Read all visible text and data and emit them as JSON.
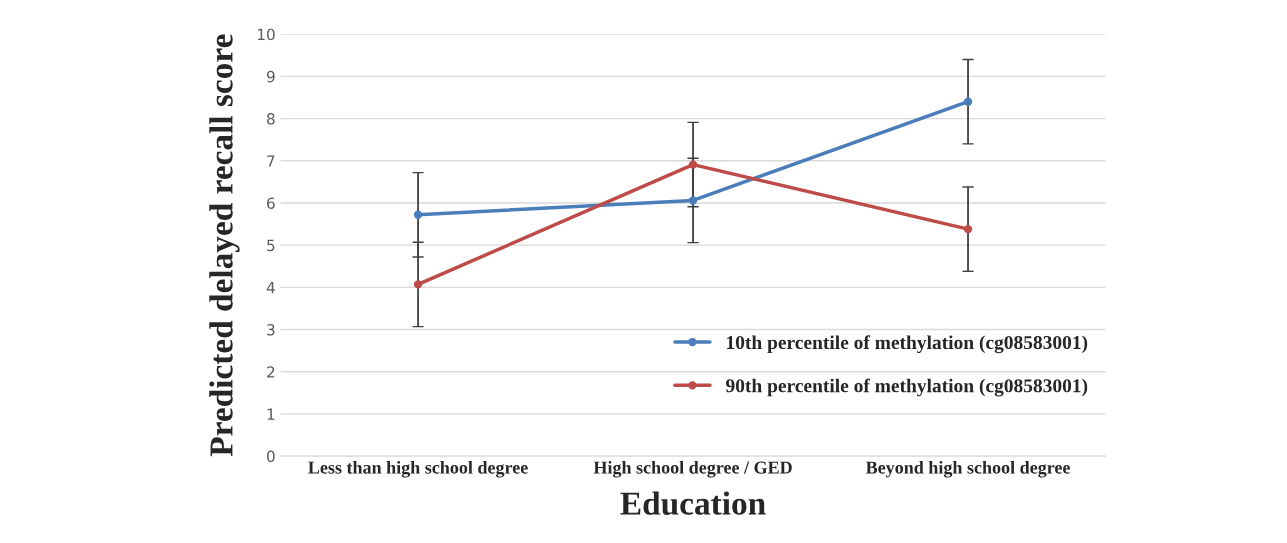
{
  "chart_data": {
    "type": "line",
    "xlabel": "Education",
    "ylabel": "Predicted delayed recall score",
    "categories": [
      "Less than high school degree",
      "High school degree / GED",
      "Beyond high school degree"
    ],
    "series": [
      {
        "name": "10th percentile of methylation (cg08583001)",
        "color": "#4a7ebb",
        "values": [
          5.72,
          6.06,
          8.4
        ],
        "errors": [
          1,
          1,
          1
        ]
      },
      {
        "name": "90th percentile of methylation (cg08583001)",
        "color": "#be4b48",
        "values": [
          4.07,
          6.91,
          5.38
        ],
        "errors": [
          1,
          1,
          1
        ]
      }
    ],
    "ylim": [
      0,
      10
    ],
    "yticks": [
      0,
      1,
      2,
      3,
      4,
      5,
      6,
      7,
      8,
      9,
      10
    ],
    "grid": "y",
    "legend": "bottom right",
    "marker": "circle",
    "line_style": "solid"
  }
}
